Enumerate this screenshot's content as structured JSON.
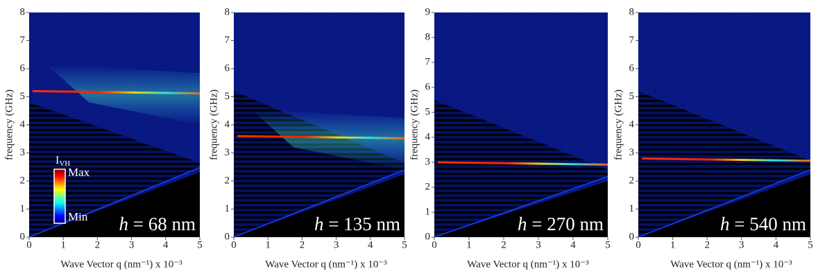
{
  "chart_data": [
    {
      "type": "heatmap",
      "ylabel": "frequency (GHz)",
      "xlabel": "Wave Vector q (nm⁻¹) x 10⁻³",
      "xlim": [
        0,
        5
      ],
      "ylim": [
        0,
        8
      ],
      "xticks": [
        0,
        1,
        2,
        3,
        4,
        5
      ],
      "yticks": [
        0,
        1,
        2,
        3,
        4,
        5,
        6,
        7,
        8
      ],
      "annotation": {
        "symbol": "h",
        "text": " = 68 nm"
      },
      "colorbar": {
        "label": "I",
        "sub": "VH",
        "max": "Max",
        "min": "Min"
      }
    },
    {
      "type": "heatmap",
      "ylabel": "frequency (GHz)",
      "xlabel": "Wave Vector q (nm⁻¹) x 10⁻³",
      "xlim": [
        0,
        5
      ],
      "ylim": [
        0,
        8
      ],
      "xticks": [
        0,
        1,
        2,
        3,
        4,
        5
      ],
      "yticks": [
        0,
        1,
        2,
        3,
        4,
        5,
        6,
        7,
        8
      ],
      "annotation": {
        "symbol": "h",
        "text": " = 135 nm"
      }
    },
    {
      "type": "heatmap",
      "ylabel": "frequency (GHz)",
      "xlabel": "Wave Vector q (nm⁻¹) x 10⁻³",
      "xlim": [
        0,
        5
      ],
      "ylim": [
        0,
        9
      ],
      "xticks": [
        0,
        1,
        2,
        3,
        4,
        5
      ],
      "yticks": [
        0,
        1,
        2,
        3,
        4,
        5,
        6,
        7,
        8,
        9
      ],
      "annotation": {
        "symbol": "h",
        "text": " = 270 nm"
      }
    },
    {
      "type": "heatmap",
      "ylabel": "frequency (GHz)",
      "xlabel": "Wave Vector q (nm⁻¹) x 10⁻³",
      "xlim": [
        0,
        5
      ],
      "ylim": [
        0,
        8
      ],
      "xticks": [
        0,
        1,
        2,
        3,
        4,
        5
      ],
      "yticks": [
        0,
        1,
        2,
        3,
        4,
        5,
        6,
        7,
        8
      ],
      "annotation": {
        "symbol": "h",
        "text": " = 540 nm"
      }
    }
  ]
}
